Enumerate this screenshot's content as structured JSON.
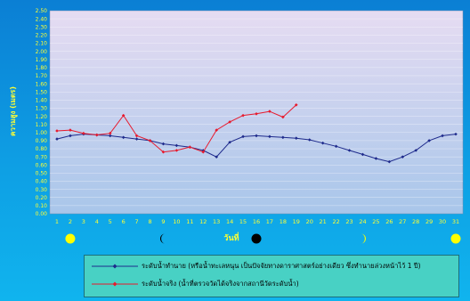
{
  "chart_data": {
    "type": "line",
    "xlabel": "วันที่",
    "ylabel": "ความสูง (เมตร)",
    "ylim": [
      0,
      2.5
    ],
    "y_ticks": [
      "0.00",
      "0.10",
      "0.20",
      "0.30",
      "0.40",
      "0.50",
      "0.60",
      "0.70",
      "0.80",
      "0.90",
      "1.00",
      "1.10",
      "1.20",
      "1.30",
      "1.40",
      "1.50",
      "1.60",
      "1.70",
      "1.80",
      "1.90",
      "2.00",
      "2.10",
      "2.20",
      "2.30",
      "2.40",
      "2.50"
    ],
    "x": [
      1,
      2,
      3,
      4,
      5,
      6,
      7,
      8,
      9,
      10,
      11,
      12,
      13,
      14,
      15,
      16,
      17,
      18,
      19,
      20,
      21,
      22,
      23,
      24,
      25,
      26,
      27,
      28,
      29,
      30,
      31
    ],
    "x_tick_labels": [
      "1",
      "2",
      "3",
      "4",
      "5",
      "6",
      "7",
      "8",
      "9",
      "10",
      "11",
      "12",
      "13",
      "14",
      "15",
      "16",
      "17",
      "18",
      "19",
      "20",
      "21",
      "22",
      "23",
      "24",
      "25",
      "26",
      "27",
      "28",
      "29",
      "30",
      "31"
    ],
    "series": [
      {
        "name": "ระดับน้ำทำนาย (หรือน้ำทะเลหนุน เป็นปัจจัยทางดาราศาสตร์อย่างเดียว ซึ่งทำนายล่วงหน้าไว้ 1 ปี)",
        "color": "#1e2a8c",
        "x": [
          1,
          2,
          3,
          4,
          5,
          6,
          7,
          8,
          9,
          10,
          11,
          12,
          13,
          14,
          15,
          16,
          17,
          18,
          19,
          20,
          21,
          22,
          23,
          24,
          25,
          26,
          27,
          28,
          29,
          30,
          31
        ],
        "values": [
          0.92,
          0.96,
          0.98,
          0.97,
          0.96,
          0.94,
          0.92,
          0.9,
          0.86,
          0.84,
          0.82,
          0.78,
          0.7,
          0.88,
          0.95,
          0.96,
          0.95,
          0.94,
          0.93,
          0.91,
          0.87,
          0.83,
          0.78,
          0.73,
          0.68,
          0.64,
          0.7,
          0.78,
          0.9,
          0.96,
          0.98
        ]
      },
      {
        "name": "ระดับน้ำจริง (น้ำที่ตรวจวัดได้จริงจากสถานีวัดระดับน้ำ)",
        "color": "#e8192c",
        "x": [
          1,
          2,
          3,
          4,
          5,
          6,
          7,
          8,
          9,
          10,
          11,
          12,
          13,
          14,
          15,
          16,
          17,
          18,
          19
        ],
        "values": [
          1.02,
          1.03,
          0.99,
          0.97,
          0.99,
          1.21,
          0.96,
          0.9,
          0.76,
          0.78,
          0.82,
          0.76,
          1.03,
          1.13,
          1.21,
          1.23,
          1.26,
          1.19,
          1.34
        ]
      }
    ],
    "moon_phases": [
      {
        "day": 2,
        "phase": "full"
      },
      {
        "day": 9,
        "phase": "waning-crescent"
      },
      {
        "day": 16,
        "phase": "new"
      },
      {
        "day": 24,
        "phase": "waxing-crescent"
      },
      {
        "day": 31,
        "phase": "full"
      }
    ],
    "colors": {
      "plot_background_top": "#e6dcf2",
      "plot_background_bottom": "#a8c6ea",
      "axis_text": "#ffff33",
      "grid": "#ffffff"
    }
  }
}
